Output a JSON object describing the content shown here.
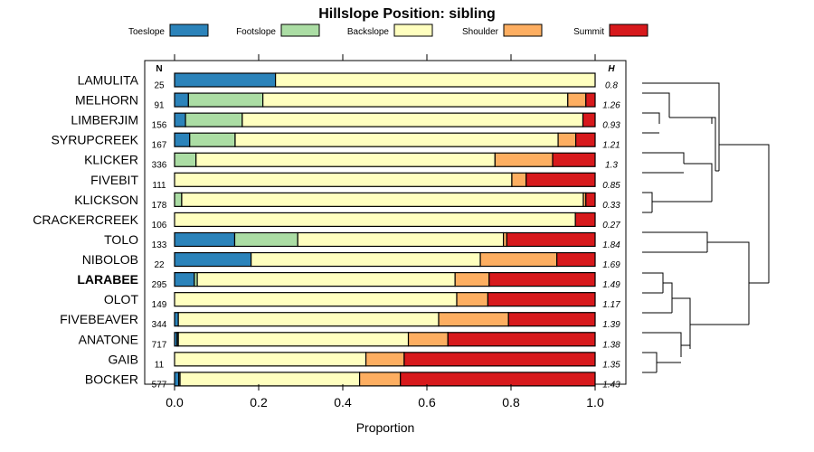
{
  "chart_data": {
    "type": "bar",
    "orientation": "horizontal",
    "stacked": true,
    "title": "Hillslope Position: sibling",
    "xlabel": "Proportion",
    "ylabel": "",
    "xlim": [
      0,
      1
    ],
    "x_ticks": [
      "0.0",
      "0.2",
      "0.4",
      "0.6",
      "0.8",
      "1.0"
    ],
    "n_header": "N",
    "h_header": "H",
    "legend": [
      {
        "name": "Toeslope",
        "color": "#2b83ba"
      },
      {
        "name": "Footslope",
        "color": "#abdda4"
      },
      {
        "name": "Backslope",
        "color": "#ffffbf"
      },
      {
        "name": "Shoulder",
        "color": "#fdae61"
      },
      {
        "name": "Summit",
        "color": "#d7191c"
      }
    ],
    "rows": [
      {
        "name": "LAMULITA",
        "n": "25",
        "h": "0.8",
        "bold": false,
        "values": [
          0.24,
          0,
          0.76,
          0,
          0
        ]
      },
      {
        "name": "MELHORN",
        "n": "91",
        "h": "1.26",
        "bold": false,
        "values": [
          0.033,
          0.177,
          0.725,
          0.043,
          0.022
        ]
      },
      {
        "name": "LIMBERJIM",
        "n": "156",
        "h": "0.93",
        "bold": false,
        "values": [
          0.026,
          0.135,
          0.81,
          0,
          0.029
        ]
      },
      {
        "name": "SYRUPCREEK",
        "n": "167",
        "h": "1.21",
        "bold": false,
        "values": [
          0.036,
          0.108,
          0.768,
          0.042,
          0.046
        ]
      },
      {
        "name": "KLICKER",
        "n": "336",
        "h": "1.3",
        "bold": false,
        "values": [
          0,
          0.051,
          0.711,
          0.137,
          0.101
        ]
      },
      {
        "name": "FIVEBIT",
        "n": "111",
        "h": "0.85",
        "bold": false,
        "values": [
          0,
          0,
          0.802,
          0.034,
          0.164
        ]
      },
      {
        "name": "KLICKSON",
        "n": "178",
        "h": "0.33",
        "bold": false,
        "values": [
          0,
          0.017,
          0.955,
          0.006,
          0.022
        ]
      },
      {
        "name": "CRACKERCREEK",
        "n": "106",
        "h": "0.27",
        "bold": false,
        "values": [
          0,
          0,
          0.953,
          0,
          0.047
        ]
      },
      {
        "name": "TOLO",
        "n": "133",
        "h": "1.84",
        "bold": false,
        "values": [
          0.143,
          0.15,
          0.489,
          0.008,
          0.21
        ]
      },
      {
        "name": "NIBOLOB",
        "n": "22",
        "h": "1.69",
        "bold": false,
        "values": [
          0.182,
          0,
          0.545,
          0.182,
          0.091
        ]
      },
      {
        "name": "LARABEE",
        "n": "295",
        "h": "1.49",
        "bold": true,
        "values": [
          0.047,
          0.007,
          0.613,
          0.081,
          0.252
        ]
      },
      {
        "name": "OLOT",
        "n": "149",
        "h": "1.17",
        "bold": false,
        "values": [
          0,
          0,
          0.671,
          0.074,
          0.255
        ]
      },
      {
        "name": "FIVEBEAVER",
        "n": "344",
        "h": "1.39",
        "bold": false,
        "values": [
          0.009,
          0,
          0.619,
          0.166,
          0.206
        ]
      },
      {
        "name": "ANATONE",
        "n": "717",
        "h": "1.38",
        "bold": false,
        "values": [
          0.006,
          0.003,
          0.547,
          0.094,
          0.35
        ]
      },
      {
        "name": "GAIB",
        "n": "11",
        "h": "1.35",
        "bold": false,
        "values": [
          0,
          0,
          0.455,
          0.091,
          0.454
        ]
      },
      {
        "name": "BOCKER",
        "n": "577",
        "h": "1.43",
        "bold": false,
        "values": [
          0.01,
          0.003,
          0.427,
          0.097,
          0.463
        ]
      }
    ]
  }
}
